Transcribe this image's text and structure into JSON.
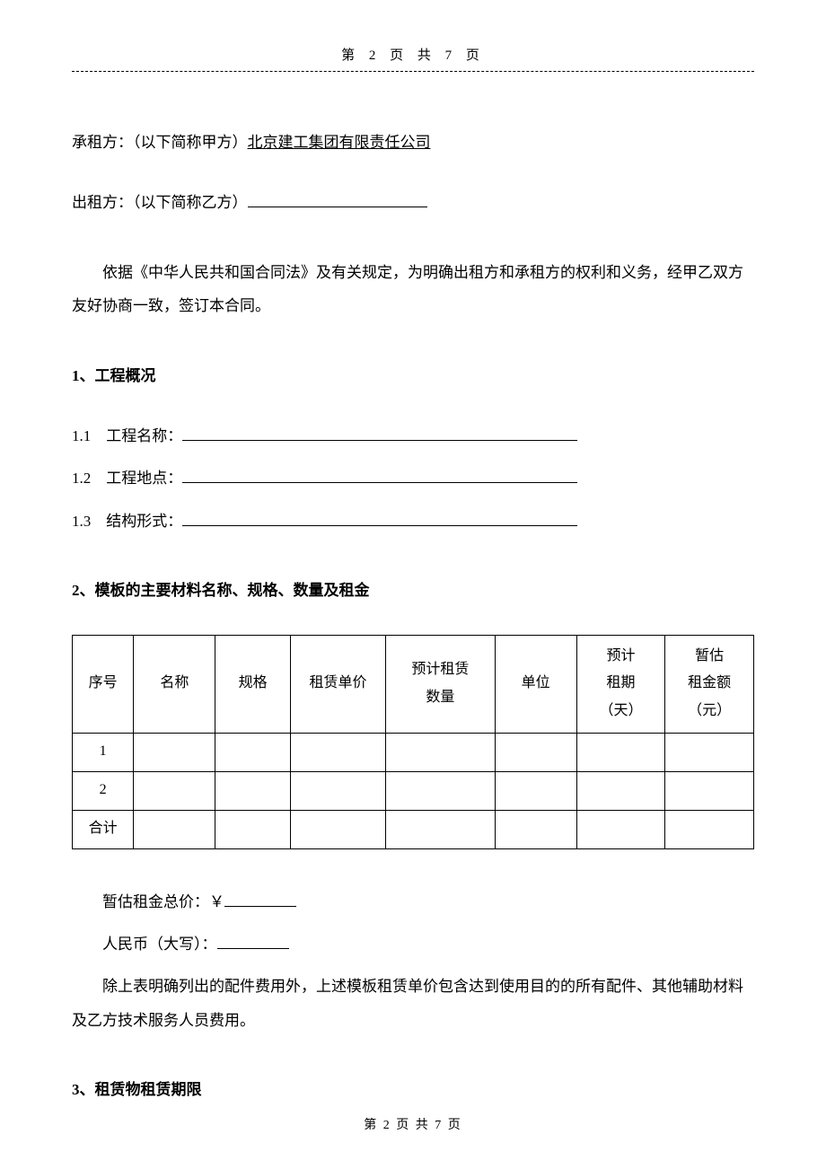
{
  "header": {
    "page_label": "第 2 页 共 7 页"
  },
  "parties": {
    "lessee_label": "承租方：（以下简称甲方）",
    "lessee_name": "北京建工集团有限责任公司",
    "lessor_label": "出租方：（以下简称乙方）"
  },
  "preamble": "依据《中华人民共和国合同法》及有关规定，为明确出租方和承租方的权利和义务，经甲乙双方友好协商一致，签订本合同。",
  "section1": {
    "heading": "1、工程概况",
    "items": {
      "name_label": "1.1　工程名称：",
      "location_label": "1.2　工程地点：",
      "structure_label": "1.3　结构形式："
    }
  },
  "section2": {
    "heading": "2、模板的主要材料名称、规格、数量及租金",
    "table": {
      "columns": [
        "序号",
        "名称",
        "规格",
        "租赁单价",
        "预计租赁\n数量",
        "单位",
        "预计\n租期\n（天）",
        "暂估\n租金额\n（元）"
      ],
      "col_widths": [
        "9%",
        "12%",
        "11%",
        "14%",
        "16%",
        "12%",
        "13%",
        "13%"
      ],
      "rows": [
        [
          "1",
          "",
          "",
          "",
          "",
          "",
          "",
          ""
        ],
        [
          "2",
          "",
          "",
          "",
          "",
          "",
          "",
          ""
        ],
        [
          "合计",
          "",
          "",
          "",
          "",
          "",
          "",
          ""
        ]
      ]
    },
    "total_label": "暂估租金总价：￥",
    "rmb_label": "人民币（大写）：",
    "note": "除上表明确列出的配件费用外，上述模板租赁单价包含达到使用目的的所有配件、其他辅助材料及乙方技术服务人员费用。"
  },
  "section3": {
    "heading": "3、租赁物租赁期限"
  },
  "footer": {
    "page_label": "第 2 页 共 7 页"
  }
}
